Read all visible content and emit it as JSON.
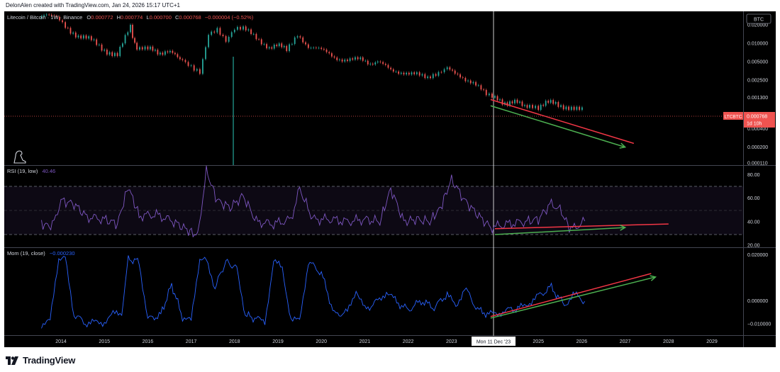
{
  "header": {
    "credit": "DelonAlen created with TradingView.com, Jan 24, 2026 15:17 UTC+1"
  },
  "footer": {
    "brand": "TradingView"
  },
  "price_pane": {
    "symbol_line": "Litecoin / Bitcoin · 1W · Binance",
    "ohlc": [
      {
        "k": "O",
        "v": "0.000772"
      },
      {
        "k": "H",
        "v": "0.000774"
      },
      {
        "k": "L",
        "v": "0.000700"
      },
      {
        "k": "C",
        "v": "0.000768"
      }
    ],
    "change": "−0.000004 (−0.52%)",
    "currency_badge": "BTC",
    "last_tag": {
      "symbol": "LTCBTC",
      "price": "0.000768",
      "countdown": "1d 10h"
    },
    "y_ticks": [
      "0.020000",
      "0.010000",
      "0.005000",
      "0.002500",
      "0.001300",
      "0.000400",
      "0.000200",
      "0.000110"
    ]
  },
  "rsi_pane": {
    "label": "RSI (19, low)",
    "value": "40.46",
    "y_ticks": [
      "80.00",
      "60.00",
      "40.00",
      "20.00"
    ]
  },
  "mom_pane": {
    "label": "Mom (19, close)",
    "value": "−0.000230",
    "y_ticks": [
      "0.020000",
      "0.000000",
      "−0.010000"
    ]
  },
  "x_axis": {
    "ticks": [
      "2014",
      "2015",
      "2016",
      "2017",
      "2018",
      "2019",
      "2020",
      "2021",
      "2022",
      "2023",
      "2025",
      "2026",
      "2027",
      "2028",
      "2029"
    ],
    "crosshair_label": "Mon 11 Dec '23"
  },
  "colors": {
    "up": "#26a69a",
    "down": "#ef5350",
    "rsi": "#7e57c2",
    "mom": "#2962ff",
    "trend_red": "#f23645",
    "trend_green": "#4caf50"
  },
  "chart_data": [
    {
      "type": "line",
      "title": "Litecoin / Bitcoin · 1W · Binance",
      "y_scale": "log",
      "ylim": [
        0.00011,
        0.03
      ],
      "x": [
        2013.55,
        2013.9,
        2014.1,
        2014.4,
        2014.7,
        2015.0,
        2015.3,
        2015.6,
        2015.75,
        2016.0,
        2016.4,
        2016.8,
        2017.0,
        2017.2,
        2017.4,
        2017.6,
        2017.8,
        2018.0,
        2018.2,
        2018.5,
        2018.8,
        2019.2,
        2019.45,
        2019.7,
        2020.0,
        2020.3,
        2020.6,
        2020.9,
        2021.3,
        2021.6,
        2021.9,
        2022.2,
        2022.45,
        2022.7,
        2022.9,
        2023.2,
        2023.5,
        2023.8,
        2024.0,
        2024.4,
        2024.8,
        2025.0,
        2025.4,
        2025.7,
        2026.07
      ],
      "values": [
        0.026,
        0.03,
        0.02,
        0.013,
        0.011,
        0.008,
        0.0065,
        0.018,
        0.008,
        0.0078,
        0.0072,
        0.0058,
        0.0045,
        0.0035,
        0.014,
        0.016,
        0.01,
        0.016,
        0.017,
        0.012,
        0.009,
        0.0085,
        0.015,
        0.009,
        0.0075,
        0.006,
        0.0055,
        0.0052,
        0.0048,
        0.0036,
        0.0035,
        0.003,
        0.0025,
        0.0031,
        0.0037,
        0.0031,
        0.0022,
        0.0014,
        0.0012,
        0.00105,
        0.001,
        0.00095,
        0.0011,
        0.00088,
        0.000768
      ],
      "trendlines": [
        {
          "color": "red",
          "from": [
            2023.9,
            0.0012
          ],
          "to": [
            2027.2,
            0.00023
          ]
        },
        {
          "color": "green",
          "from": [
            2023.9,
            0.00095
          ],
          "to": [
            2027.0,
            0.0002
          ]
        }
      ]
    },
    {
      "type": "line",
      "title": "RSI (19, low)",
      "ylim": [
        20,
        85
      ],
      "levels": [
        70,
        50,
        30
      ],
      "x": [
        2013.55,
        2013.8,
        2014.0,
        2014.3,
        2014.6,
        2015.0,
        2015.3,
        2015.55,
        2015.8,
        2016.2,
        2016.6,
        2016.9,
        2017.15,
        2017.35,
        2017.6,
        2017.9,
        2018.2,
        2018.5,
        2018.9,
        2019.3,
        2019.5,
        2019.8,
        2020.2,
        2020.6,
        2021.0,
        2021.35,
        2021.6,
        2021.9,
        2022.2,
        2022.5,
        2022.75,
        2023.0,
        2023.3,
        2023.6,
        2023.9,
        2024.3,
        2024.7,
        2025.0,
        2025.3,
        2025.5,
        2025.75,
        2026.07
      ],
      "values": [
        38,
        36,
        58,
        55,
        44,
        42,
        38,
        70,
        45,
        46,
        40,
        33,
        28,
        83,
        58,
        52,
        62,
        40,
        38,
        42,
        68,
        42,
        42,
        40,
        42,
        40,
        68,
        40,
        42,
        40,
        52,
        76,
        58,
        46,
        35,
        38,
        40,
        42,
        56,
        50,
        33,
        40.46
      ],
      "trendlines": [
        {
          "color": "red",
          "from": [
            2024.0,
            34
          ],
          "to": [
            2028.0,
            38
          ]
        },
        {
          "color": "green",
          "from": [
            2024.0,
            29
          ],
          "to": [
            2027.0,
            35
          ]
        }
      ]
    },
    {
      "type": "line",
      "title": "Mom (19, close)",
      "ylim": [
        -0.0115,
        0.021
      ],
      "x": [
        2013.55,
        2013.75,
        2013.95,
        2014.1,
        2014.3,
        2014.6,
        2015.0,
        2015.2,
        2015.4,
        2015.55,
        2015.8,
        2016.0,
        2016.3,
        2016.55,
        2016.8,
        2017.0,
        2017.2,
        2017.35,
        2017.55,
        2017.8,
        2018.05,
        2018.25,
        2018.5,
        2018.7,
        2018.9,
        2019.1,
        2019.3,
        2019.5,
        2019.7,
        2020.0,
        2020.3,
        2020.6,
        2020.8,
        2021.0,
        2021.3,
        2021.5,
        2021.7,
        2022.0,
        2022.3,
        2022.6,
        2022.9,
        2023.1,
        2023.3,
        2023.6,
        2023.9,
        2024.3,
        2024.6,
        2025.0,
        2025.3,
        2025.6,
        2025.8,
        2026.07
      ],
      "values": [
        -0.01,
        -0.009,
        0.019,
        0.018,
        -0.006,
        -0.01,
        -0.009,
        -0.006,
        -0.005,
        0.018,
        0.017,
        -0.008,
        -0.006,
        0.007,
        -0.007,
        -0.009,
        0.019,
        0.017,
        0.006,
        0.017,
        0.014,
        -0.006,
        -0.008,
        -0.009,
        0.017,
        0.014,
        -0.008,
        -0.009,
        0.017,
        0.012,
        -0.006,
        -0.005,
        0.005,
        -0.004,
        0.0,
        0.004,
        0.0,
        -0.004,
        0.0,
        -0.003,
        0.003,
        -0.003,
        0.006,
        -0.004,
        -0.006,
        -0.004,
        -0.003,
        0.002,
        0.006,
        -0.002,
        0.003,
        -0.00023
      ],
      "trendlines": [
        {
          "color": "red",
          "from": [
            2023.9,
            -0.0068
          ],
          "to": [
            2027.6,
            0.0118
          ]
        },
        {
          "color": "green",
          "from": [
            2023.9,
            -0.0075
          ],
          "to": [
            2027.7,
            0.0103
          ]
        }
      ]
    }
  ]
}
